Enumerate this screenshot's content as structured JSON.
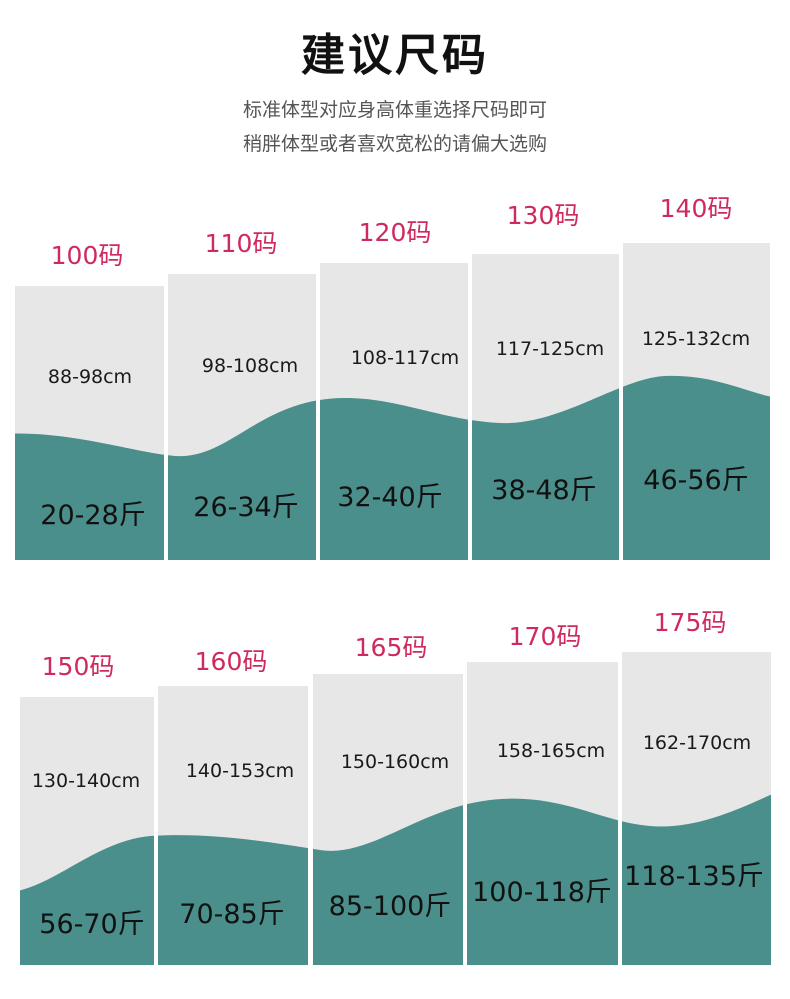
{
  "page": {
    "title": "建议尺码",
    "subtitle_lines": [
      "标准体型对应身高体重选择尺码即可",
      "稍胖体型或者喜欢宽松的请偏大选购"
    ]
  },
  "colors": {
    "card_bg": "#e7e7e7",
    "wave": "#4a8f8b",
    "size_text": "#cf2a5e",
    "title_text": "#111111"
  },
  "sizes": [
    {
      "size": "100码",
      "height": "88-98cm",
      "weight": "20-28斤"
    },
    {
      "size": "110码",
      "height": "98-108cm",
      "weight": "26-34斤"
    },
    {
      "size": "120码",
      "height": "108-117cm",
      "weight": "32-40斤"
    },
    {
      "size": "130码",
      "height": "117-125cm",
      "weight": "38-48斤"
    },
    {
      "size": "140码",
      "height": "125-132cm",
      "weight": "46-56斤"
    },
    {
      "size": "150码",
      "height": "130-140cm",
      "weight": "56-70斤"
    },
    {
      "size": "160码",
      "height": "140-153cm",
      "weight": "70-85斤"
    },
    {
      "size": "165码",
      "height": "150-160cm",
      "weight": "85-100斤"
    },
    {
      "size": "170码",
      "height": "158-165cm",
      "weight": "100-118斤"
    },
    {
      "size": "175码",
      "height": "162-170cm",
      "weight": "118-135斤"
    }
  ]
}
